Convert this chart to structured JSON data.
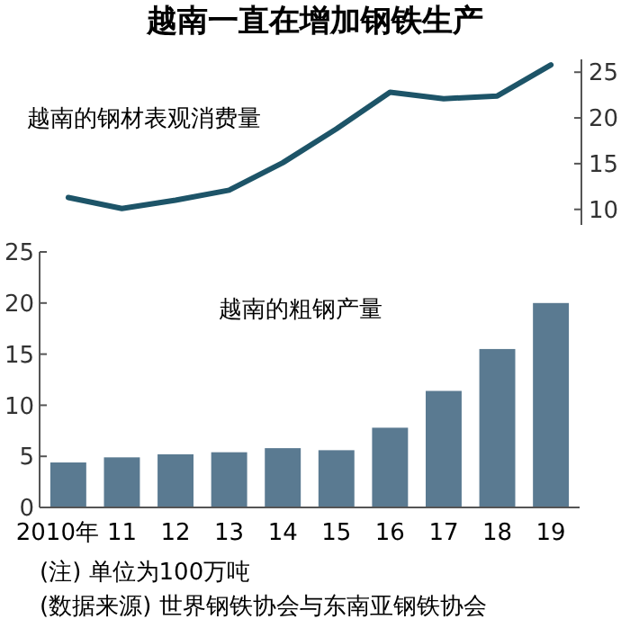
{
  "chart_data": [
    {
      "type": "line",
      "title": "越南一直在增加钢铁生产",
      "categories": [
        null,
        null,
        null,
        null,
        null,
        null,
        null,
        null,
        null,
        null
      ],
      "series": [
        {
          "name": "越南的钢材表观消费量",
          "color": "#1d5468",
          "values": [
            11.3,
            10.1,
            11.0,
            12.1,
            15.1,
            18.8,
            22.8,
            22.1,
            22.4,
            25.8
          ]
        }
      ],
      "ylim": [
        8.3,
        26.4
      ],
      "yticks": [
        10,
        15,
        20,
        25
      ],
      "tick_labels": "y"
    },
    {
      "type": "bar",
      "categories": [
        "2010年",
        "11",
        "12",
        "13",
        "14",
        "15",
        "16",
        "17",
        "18",
        "19"
      ],
      "series": [
        {
          "name": "越南的粗钢产量",
          "color": "#5a7a91",
          "values": [
            4.4,
            4.9,
            5.2,
            5.4,
            5.8,
            5.6,
            7.8,
            11.4,
            15.5,
            20.0
          ]
        }
      ],
      "ylim": [
        0,
        25
      ],
      "yticks": [
        0,
        5,
        10,
        15,
        20,
        25
      ],
      "annotations": [
        "(注) 单位为100万吨",
        "(数据来源) 世界钢铁协会与东南亚钢铁协会"
      ]
    }
  ]
}
